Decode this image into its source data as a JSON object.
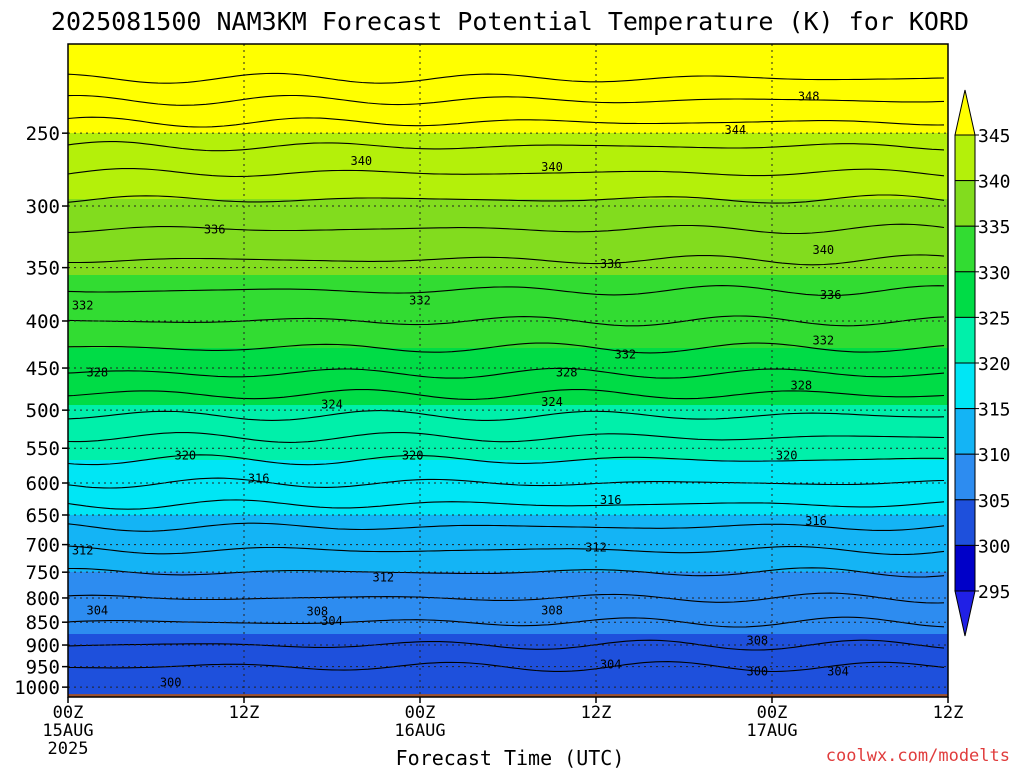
{
  "chart_data": {
    "type": "contour",
    "title": "2025081500 NAM3KM Forecast Potential Temperature (K) for KORD",
    "xlabel": "Forecast Time (UTC)",
    "ylabel": "",
    "credit": "coolwx.com/modelts",
    "x_ticks": [
      {
        "hour": 0,
        "label": "00Z",
        "sub1": "15AUG",
        "sub2": "2025"
      },
      {
        "hour": 12,
        "label": "12Z",
        "sub1": "",
        "sub2": ""
      },
      {
        "hour": 24,
        "label": "00Z",
        "sub1": "16AUG",
        "sub2": ""
      },
      {
        "hour": 36,
        "label": "12Z",
        "sub1": "",
        "sub2": ""
      },
      {
        "hour": 48,
        "label": "00Z",
        "sub1": "17AUG",
        "sub2": ""
      },
      {
        "hour": 60,
        "label": "12Z",
        "sub1": "",
        "sub2": ""
      }
    ],
    "xlim_hours": [
      0,
      60
    ],
    "ylim_hpa": [
      200,
      1025
    ],
    "y_scale": "log",
    "y_ticks": [
      250,
      300,
      350,
      400,
      450,
      500,
      550,
      600,
      650,
      700,
      750,
      800,
      850,
      900,
      950,
      1000
    ],
    "grid": true,
    "colorbar_levels": [
      295,
      300,
      305,
      310,
      315,
      320,
      325,
      330,
      335,
      340,
      345
    ],
    "colorbar_colors": [
      "#2020e6",
      "#0000c8",
      "#1e50dc",
      "#2d8cf0",
      "#14b4f5",
      "#00e6f5",
      "#00f0aa",
      "#00dc46",
      "#32dc32",
      "#82dc1e",
      "#b4f00a",
      "#ffff00"
    ],
    "ground_color": "#a0522d",
    "profile": {
      "hours": [
        0,
        6,
        12,
        18,
        24,
        30,
        36,
        42,
        48,
        54,
        60
      ],
      "pressure_hpa": [
        215,
        250,
        300,
        350,
        400,
        450,
        500,
        550,
        600,
        650,
        700,
        750,
        800,
        850,
        900,
        950,
        1000
      ],
      "theta_k": [
        350.5,
        345,
        339.5,
        335.5,
        332,
        328.5,
        324.5,
        321,
        318,
        315,
        312.5,
        310,
        308,
        306,
        304,
        302,
        300.5
      ]
    },
    "contour_labels": [
      {
        "value": 348,
        "hour": 50.5,
        "p": 228
      },
      {
        "value": 344,
        "hour": 45.5,
        "p": 248
      },
      {
        "value": 340,
        "hour": 20.0,
        "p": 268
      },
      {
        "value": 340,
        "hour": 33.0,
        "p": 272
      },
      {
        "value": 340,
        "hour": 51.5,
        "p": 335
      },
      {
        "value": 336,
        "hour": 10.0,
        "p": 318
      },
      {
        "value": 336,
        "hour": 37.0,
        "p": 347
      },
      {
        "value": 336,
        "hour": 52.0,
        "p": 375
      },
      {
        "value": 332,
        "hour": 1.0,
        "p": 385
      },
      {
        "value": 332,
        "hour": 24.0,
        "p": 380
      },
      {
        "value": 332,
        "hour": 38.0,
        "p": 435
      },
      {
        "value": 332,
        "hour": 51.5,
        "p": 420
      },
      {
        "value": 328,
        "hour": 2.0,
        "p": 455
      },
      {
        "value": 328,
        "hour": 34.0,
        "p": 455
      },
      {
        "value": 328,
        "hour": 50.0,
        "p": 470
      },
      {
        "value": 324,
        "hour": 18.0,
        "p": 493
      },
      {
        "value": 324,
        "hour": 33.0,
        "p": 490
      },
      {
        "value": 320,
        "hour": 8.0,
        "p": 560
      },
      {
        "value": 320,
        "hour": 23.5,
        "p": 560
      },
      {
        "value": 320,
        "hour": 49.0,
        "p": 560
      },
      {
        "value": 316,
        "hour": 13.0,
        "p": 593
      },
      {
        "value": 316,
        "hour": 37.0,
        "p": 626
      },
      {
        "value": 316,
        "hour": 51.0,
        "p": 660
      },
      {
        "value": 312,
        "hour": 1.0,
        "p": 710
      },
      {
        "value": 312,
        "hour": 21.5,
        "p": 760
      },
      {
        "value": 312,
        "hour": 36.0,
        "p": 705
      },
      {
        "value": 308,
        "hour": 17.0,
        "p": 828
      },
      {
        "value": 308,
        "hour": 33.0,
        "p": 825
      },
      {
        "value": 308,
        "hour": 47.0,
        "p": 890
      },
      {
        "value": 304,
        "hour": 2.0,
        "p": 826
      },
      {
        "value": 304,
        "hour": 18.0,
        "p": 848
      },
      {
        "value": 304,
        "hour": 37.0,
        "p": 945
      },
      {
        "value": 304,
        "hour": 52.5,
        "p": 962
      },
      {
        "value": 300,
        "hour": 7.0,
        "p": 988
      },
      {
        "value": 300,
        "hour": 47.0,
        "p": 962
      }
    ]
  }
}
